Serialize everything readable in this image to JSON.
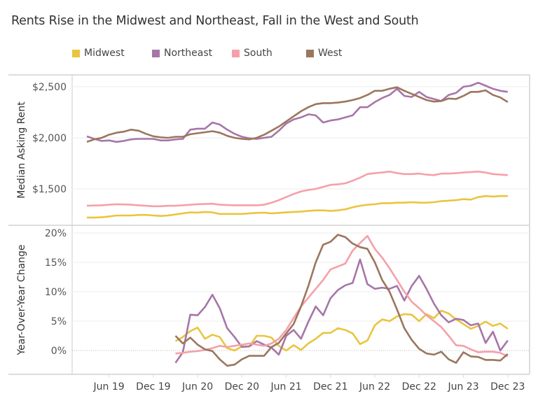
{
  "chart_data": [
    {
      "type": "line",
      "title": "Rents Rise in the Midwest and Northeast, Fall in the West and South",
      "ylabel": "Median Asking Rent",
      "ylim": [
        1150,
        2600
      ],
      "yticks": [
        "$1,500",
        "$2,000",
        "$2,500"
      ],
      "ytick_values": [
        1500,
        2000,
        2500
      ],
      "grid": true,
      "legend": "top",
      "x": [
        "2019-03",
        "2019-04",
        "2019-05",
        "2019-06",
        "2019-07",
        "2019-08",
        "2019-09",
        "2019-10",
        "2019-11",
        "2019-12",
        "2020-01",
        "2020-02",
        "2020-03",
        "2020-04",
        "2020-05",
        "2020-06",
        "2020-07",
        "2020-08",
        "2020-09",
        "2020-10",
        "2020-11",
        "2020-12",
        "2021-01",
        "2021-02",
        "2021-03",
        "2021-04",
        "2021-05",
        "2021-06",
        "2021-07",
        "2021-08",
        "2021-09",
        "2021-10",
        "2021-11",
        "2021-12",
        "2022-01",
        "2022-02",
        "2022-03",
        "2022-04",
        "2022-05",
        "2022-06",
        "2022-07",
        "2022-08",
        "2022-09",
        "2022-10",
        "2022-11",
        "2022-12",
        "2023-01",
        "2023-02",
        "2023-03",
        "2023-04",
        "2023-05",
        "2023-06",
        "2023-07",
        "2023-08",
        "2023-09",
        "2023-10",
        "2023-11",
        "2023-12"
      ],
      "series": [
        {
          "name": "Midwest",
          "color": "#e9c53f",
          "values": [
            1220,
            1220,
            1222,
            1230,
            1240,
            1240,
            1240,
            1245,
            1245,
            1240,
            1235,
            1240,
            1250,
            1260,
            1270,
            1268,
            1275,
            1270,
            1255,
            1255,
            1255,
            1255,
            1260,
            1265,
            1268,
            1260,
            1265,
            1270,
            1275,
            1278,
            1285,
            1290,
            1290,
            1285,
            1290,
            1300,
            1320,
            1335,
            1345,
            1350,
            1360,
            1360,
            1365,
            1365,
            1370,
            1365,
            1365,
            1370,
            1380,
            1385,
            1390,
            1400,
            1395,
            1420,
            1430,
            1425,
            1430,
            1430
          ]
        },
        {
          "name": "Northeast",
          "color": "#a676a8",
          "values": [
            2015,
            1990,
            1970,
            1975,
            1960,
            1970,
            1985,
            1990,
            1990,
            1990,
            1975,
            1975,
            1985,
            1990,
            2080,
            2090,
            2090,
            2150,
            2130,
            2080,
            2040,
            2010,
            1995,
            1990,
            2000,
            2010,
            2070,
            2140,
            2180,
            2200,
            2230,
            2220,
            2150,
            2170,
            2180,
            2200,
            2220,
            2300,
            2300,
            2350,
            2390,
            2420,
            2480,
            2410,
            2400,
            2450,
            2400,
            2380,
            2360,
            2420,
            2440,
            2500,
            2510,
            2540,
            2510,
            2480,
            2460,
            2450
          ]
        },
        {
          "name": "South",
          "color": "#f5a0a8",
          "values": [
            1335,
            1338,
            1340,
            1345,
            1350,
            1348,
            1345,
            1340,
            1335,
            1330,
            1330,
            1335,
            1335,
            1340,
            1345,
            1350,
            1352,
            1355,
            1345,
            1342,
            1340,
            1340,
            1340,
            1340,
            1345,
            1365,
            1390,
            1420,
            1450,
            1475,
            1490,
            1500,
            1520,
            1540,
            1545,
            1555,
            1580,
            1610,
            1645,
            1655,
            1660,
            1670,
            1655,
            1645,
            1645,
            1650,
            1640,
            1635,
            1650,
            1650,
            1655,
            1660,
            1665,
            1670,
            1660,
            1645,
            1640,
            1635
          ]
        },
        {
          "name": "West",
          "color": "#9b765e",
          "values": [
            1960,
            1985,
            2000,
            2030,
            2050,
            2060,
            2080,
            2070,
            2040,
            2015,
            2005,
            2000,
            2010,
            2010,
            2035,
            2045,
            2055,
            2065,
            2050,
            2020,
            2000,
            1990,
            1985,
            2000,
            2030,
            2070,
            2110,
            2160,
            2210,
            2260,
            2300,
            2330,
            2340,
            2340,
            2345,
            2355,
            2370,
            2390,
            2420,
            2460,
            2460,
            2480,
            2495,
            2460,
            2430,
            2400,
            2370,
            2355,
            2360,
            2385,
            2380,
            2410,
            2450,
            2450,
            2465,
            2420,
            2395,
            2350
          ]
        }
      ]
    },
    {
      "type": "line",
      "ylabel": "Year-Over-Year Change",
      "ylim": [
        -4.5,
        20.5
      ],
      "yticks": [
        "0%",
        "5%",
        "10%",
        "15%",
        "20%"
      ],
      "ytick_values": [
        0,
        5,
        10,
        15,
        20
      ],
      "xticks": [
        "Jun 19",
        "Dec 19",
        "Jun 20",
        "Dec 20",
        "Jun 21",
        "Dec 21",
        "Jun 22",
        "Dec 22",
        "Jun 23",
        "Dec 23"
      ],
      "xtick_values": [
        "2019-06",
        "2019-12",
        "2020-06",
        "2020-12",
        "2021-06",
        "2021-12",
        "2022-06",
        "2022-12",
        "2023-06",
        "2023-12"
      ],
      "grid": true,
      "x_start": "2020-03",
      "series": [
        {
          "name": "Midwest",
          "values": [
            1.6,
            2.3,
            3.3,
            3.9,
            2.0,
            2.7,
            2.3,
            0.4,
            0.0,
            0.7,
            0.7,
            2.5,
            2.5,
            2.2,
            0.8,
            0.0,
            0.9,
            0.1,
            1.2,
            2.0,
            3.0,
            3.0,
            3.8,
            3.5,
            2.9,
            1.1,
            1.7,
            4.3,
            5.3,
            5.0,
            5.8,
            6.2,
            6.1,
            5.0,
            6.2,
            5.5,
            6.8,
            6.3,
            5.3,
            4.5,
            3.7,
            4.2,
            4.9,
            4.2,
            4.6,
            3.7
          ]
        },
        {
          "name": "Northeast",
          "values": [
            -2.1,
            -0.3,
            6.1,
            6.0,
            7.4,
            9.5,
            7.2,
            3.8,
            2.3,
            0.6,
            0.7,
            1.6,
            1.0,
            0.5,
            -0.7,
            2.5,
            3.5,
            2.0,
            4.9,
            7.5,
            6.0,
            8.9,
            10.3,
            11.1,
            11.5,
            15.5,
            11.3,
            10.5,
            10.7,
            10.5,
            11.0,
            8.5,
            11.0,
            12.7,
            10.5,
            8.0,
            6.0,
            4.8,
            5.4,
            5.2,
            4.3,
            4.6,
            1.3,
            3.2,
            0.0,
            1.7
          ]
        },
        {
          "name": "South",
          "values": [
            -0.5,
            -0.4,
            -0.2,
            -0.1,
            0.1,
            0.4,
            0.8,
            0.6,
            0.8,
            1.0,
            1.2,
            1.0,
            0.8,
            1.2,
            2.0,
            3.5,
            5.5,
            7.5,
            9.0,
            10.5,
            12.0,
            13.8,
            14.3,
            14.8,
            17.0,
            18.3,
            19.5,
            17.3,
            15.8,
            14.0,
            12.0,
            10.0,
            8.3,
            7.2,
            6.0,
            5.0,
            4.0,
            2.5,
            0.9,
            0.8,
            0.2,
            -0.3,
            -0.2,
            -0.2,
            -0.4,
            -1.0
          ]
        },
        {
          "name": "West",
          "values": [
            2.5,
            1.2,
            2.2,
            1.0,
            0.2,
            -0.1,
            -1.5,
            -2.6,
            -2.4,
            -1.5,
            -0.9,
            -0.9,
            -0.9,
            0.6,
            1.3,
            2.9,
            4.5,
            7.5,
            11.0,
            15.0,
            18.0,
            18.5,
            19.7,
            19.3,
            18.2,
            17.6,
            17.3,
            15.0,
            12.0,
            10.0,
            7.0,
            3.8,
            1.8,
            0.3,
            -0.5,
            -0.7,
            -0.2,
            -1.5,
            -2.1,
            -0.3,
            -1.0,
            -1.1,
            -1.6,
            -1.6,
            -1.7,
            -0.6
          ]
        }
      ]
    }
  ]
}
